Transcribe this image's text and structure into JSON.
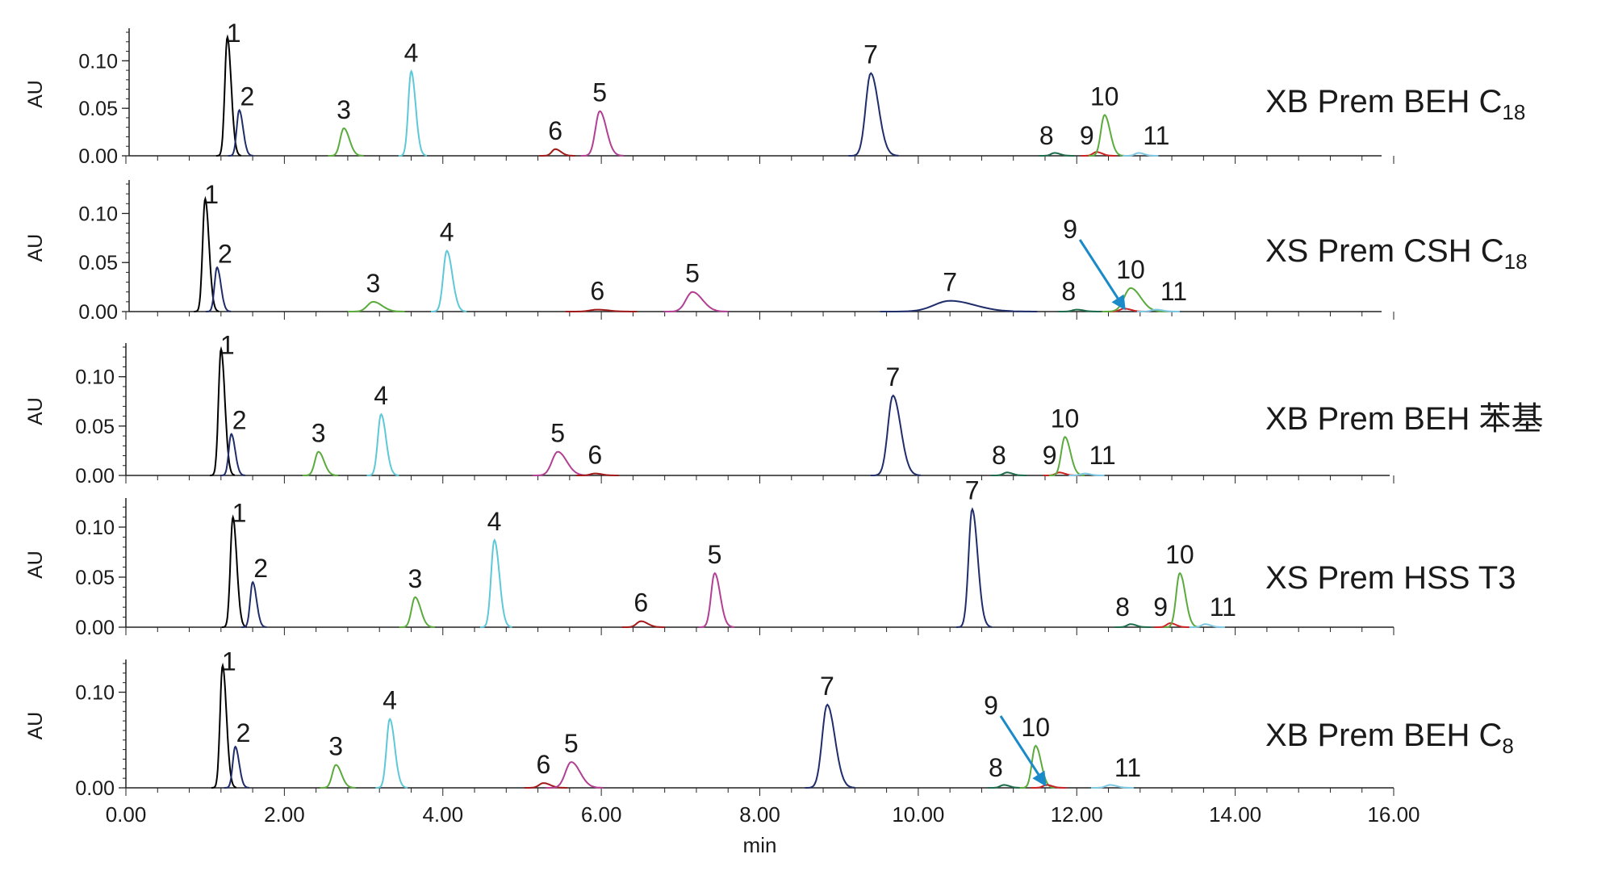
{
  "chart_data": {
    "type": "line",
    "x_axis": {
      "label": "min",
      "range": [
        0,
        16
      ],
      "ticks": [
        "0.00",
        "2.00",
        "4.00",
        "6.00",
        "8.00",
        "10.00",
        "12.00",
        "14.00",
        "16.00"
      ]
    },
    "y_axis": {
      "label": "AU"
    },
    "grid": false,
    "compound_colors": {
      "1": "#000000",
      "2": "#1f2d6b",
      "3": "#5aab3c",
      "4": "#5ec8d8",
      "5": "#b23f93",
      "6": "#a11a1a",
      "7": "#1f2d6b",
      "8": "#1d6b4a",
      "9": "#cc2222",
      "10": "#5aab3c",
      "11": "#7ec8e3"
    },
    "arrow_color": "#1b8ac8",
    "panels": [
      {
        "title_main": "XB Prem BEH C",
        "title_sub": "18",
        "ylim": [
          0,
          0.13
        ],
        "yticks": [
          "0.00",
          "0.05",
          "0.10"
        ],
        "peaks": [
          {
            "label": "1",
            "x": 1.28,
            "height": 0.125,
            "width": 0.035
          },
          {
            "label": "2",
            "x": 1.43,
            "height": 0.048,
            "width": 0.035
          },
          {
            "label": "3",
            "x": 2.75,
            "height": 0.029,
            "width": 0.05
          },
          {
            "label": "4",
            "x": 3.6,
            "height": 0.089,
            "width": 0.04
          },
          {
            "label": "6",
            "x": 5.42,
            "height": 0.007,
            "width": 0.05
          },
          {
            "label": "5",
            "x": 5.98,
            "height": 0.047,
            "width": 0.06
          },
          {
            "label": "7",
            "x": 9.4,
            "height": 0.087,
            "width": 0.07
          },
          {
            "label": "8",
            "x": 11.72,
            "height": 0.003,
            "width": 0.05
          },
          {
            "label": "9",
            "x": 12.25,
            "height": 0.004,
            "width": 0.05
          },
          {
            "label": "10",
            "x": 12.35,
            "height": 0.043,
            "width": 0.05
          },
          {
            "label": "11",
            "x": 12.78,
            "height": 0.003,
            "width": 0.05
          }
        ]
      },
      {
        "title_main": "XS Prem CSH C",
        "title_sub": "18",
        "ylim": [
          0,
          0.13
        ],
        "yticks": [
          "0.00",
          "0.05",
          "0.10"
        ],
        "arrow": {
          "label": "9",
          "to_x": 12.6
        },
        "peaks": [
          {
            "label": "1",
            "x": 1.0,
            "height": 0.115,
            "width": 0.035
          },
          {
            "label": "2",
            "x": 1.15,
            "height": 0.045,
            "width": 0.035
          },
          {
            "label": "3",
            "x": 3.12,
            "height": 0.01,
            "width": 0.08
          },
          {
            "label": "4",
            "x": 4.05,
            "height": 0.062,
            "width": 0.05
          },
          {
            "label": "6",
            "x": 5.95,
            "height": 0.002,
            "width": 0.1
          },
          {
            "label": "5",
            "x": 7.15,
            "height": 0.02,
            "width": 0.09
          },
          {
            "label": "7",
            "x": 10.4,
            "height": 0.011,
            "width": 0.22
          },
          {
            "label": "8",
            "x": 12.0,
            "height": 0.002,
            "width": 0.06
          },
          {
            "label": "9",
            "x": 12.6,
            "height": 0.003,
            "width": 0.06
          },
          {
            "label": "10",
            "x": 12.68,
            "height": 0.024,
            "width": 0.09
          },
          {
            "label": "11",
            "x": 13.0,
            "height": 0.002,
            "width": 0.06
          }
        ]
      },
      {
        "title_main": "XB Prem BEH 苯基",
        "title_sub": "",
        "ylim": [
          0,
          0.13
        ],
        "yticks": [
          "0.00",
          "0.05",
          "0.10"
        ],
        "peaks": [
          {
            "label": "1",
            "x": 1.2,
            "height": 0.128,
            "width": 0.035
          },
          {
            "label": "2",
            "x": 1.33,
            "height": 0.042,
            "width": 0.035
          },
          {
            "label": "3",
            "x": 2.43,
            "height": 0.024,
            "width": 0.05
          },
          {
            "label": "4",
            "x": 3.22,
            "height": 0.062,
            "width": 0.045
          },
          {
            "label": "5",
            "x": 5.45,
            "height": 0.024,
            "width": 0.08
          },
          {
            "label": "6",
            "x": 5.92,
            "height": 0.002,
            "width": 0.06
          },
          {
            "label": "7",
            "x": 9.68,
            "height": 0.081,
            "width": 0.07
          },
          {
            "label": "8",
            "x": 11.12,
            "height": 0.003,
            "width": 0.05
          },
          {
            "label": "9",
            "x": 11.78,
            "height": 0.003,
            "width": 0.05
          },
          {
            "label": "10",
            "x": 11.85,
            "height": 0.039,
            "width": 0.05
          },
          {
            "label": "11",
            "x": 12.1,
            "height": 0.002,
            "width": 0.05
          }
        ]
      },
      {
        "title_main": "XS Prem HSS T3",
        "title_sub": "",
        "ylim": [
          0,
          0.125
        ],
        "yticks": [
          "0.00",
          "0.05",
          "0.10"
        ],
        "peaks": [
          {
            "label": "1",
            "x": 1.35,
            "height": 0.11,
            "width": 0.035
          },
          {
            "label": "2",
            "x": 1.6,
            "height": 0.045,
            "width": 0.035
          },
          {
            "label": "3",
            "x": 3.65,
            "height": 0.03,
            "width": 0.05
          },
          {
            "label": "4",
            "x": 4.65,
            "height": 0.087,
            "width": 0.045
          },
          {
            "label": "6",
            "x": 6.5,
            "height": 0.006,
            "width": 0.06
          },
          {
            "label": "5",
            "x": 7.43,
            "height": 0.054,
            "width": 0.05
          },
          {
            "label": "7",
            "x": 10.68,
            "height": 0.118,
            "width": 0.05
          },
          {
            "label": "8",
            "x": 12.68,
            "height": 0.003,
            "width": 0.05
          },
          {
            "label": "9",
            "x": 13.18,
            "height": 0.004,
            "width": 0.05
          },
          {
            "label": "10",
            "x": 13.3,
            "height": 0.054,
            "width": 0.05
          },
          {
            "label": "11",
            "x": 13.62,
            "height": 0.003,
            "width": 0.05
          }
        ]
      },
      {
        "title_main": "XB Prem BEH C",
        "title_sub": "8",
        "ylim": [
          0,
          0.13
        ],
        "yticks": [
          "0.00",
          "0.10"
        ],
        "arrow": {
          "label": "9",
          "to_x": 11.6
        },
        "peaks": [
          {
            "label": "1",
            "x": 1.22,
            "height": 0.128,
            "width": 0.035
          },
          {
            "label": "2",
            "x": 1.38,
            "height": 0.043,
            "width": 0.035
          },
          {
            "label": "3",
            "x": 2.65,
            "height": 0.024,
            "width": 0.05
          },
          {
            "label": "4",
            "x": 3.33,
            "height": 0.072,
            "width": 0.045
          },
          {
            "label": "6",
            "x": 5.27,
            "height": 0.005,
            "width": 0.06
          },
          {
            "label": "5",
            "x": 5.62,
            "height": 0.027,
            "width": 0.08
          },
          {
            "label": "7",
            "x": 8.85,
            "height": 0.087,
            "width": 0.07
          },
          {
            "label": "8",
            "x": 11.08,
            "height": 0.003,
            "width": 0.05
          },
          {
            "label": "10",
            "x": 11.48,
            "height": 0.044,
            "width": 0.05
          },
          {
            "label": "9",
            "x": 11.62,
            "height": 0.003,
            "width": 0.05
          },
          {
            "label": "11",
            "x": 12.42,
            "height": 0.003,
            "width": 0.06
          }
        ]
      }
    ]
  }
}
